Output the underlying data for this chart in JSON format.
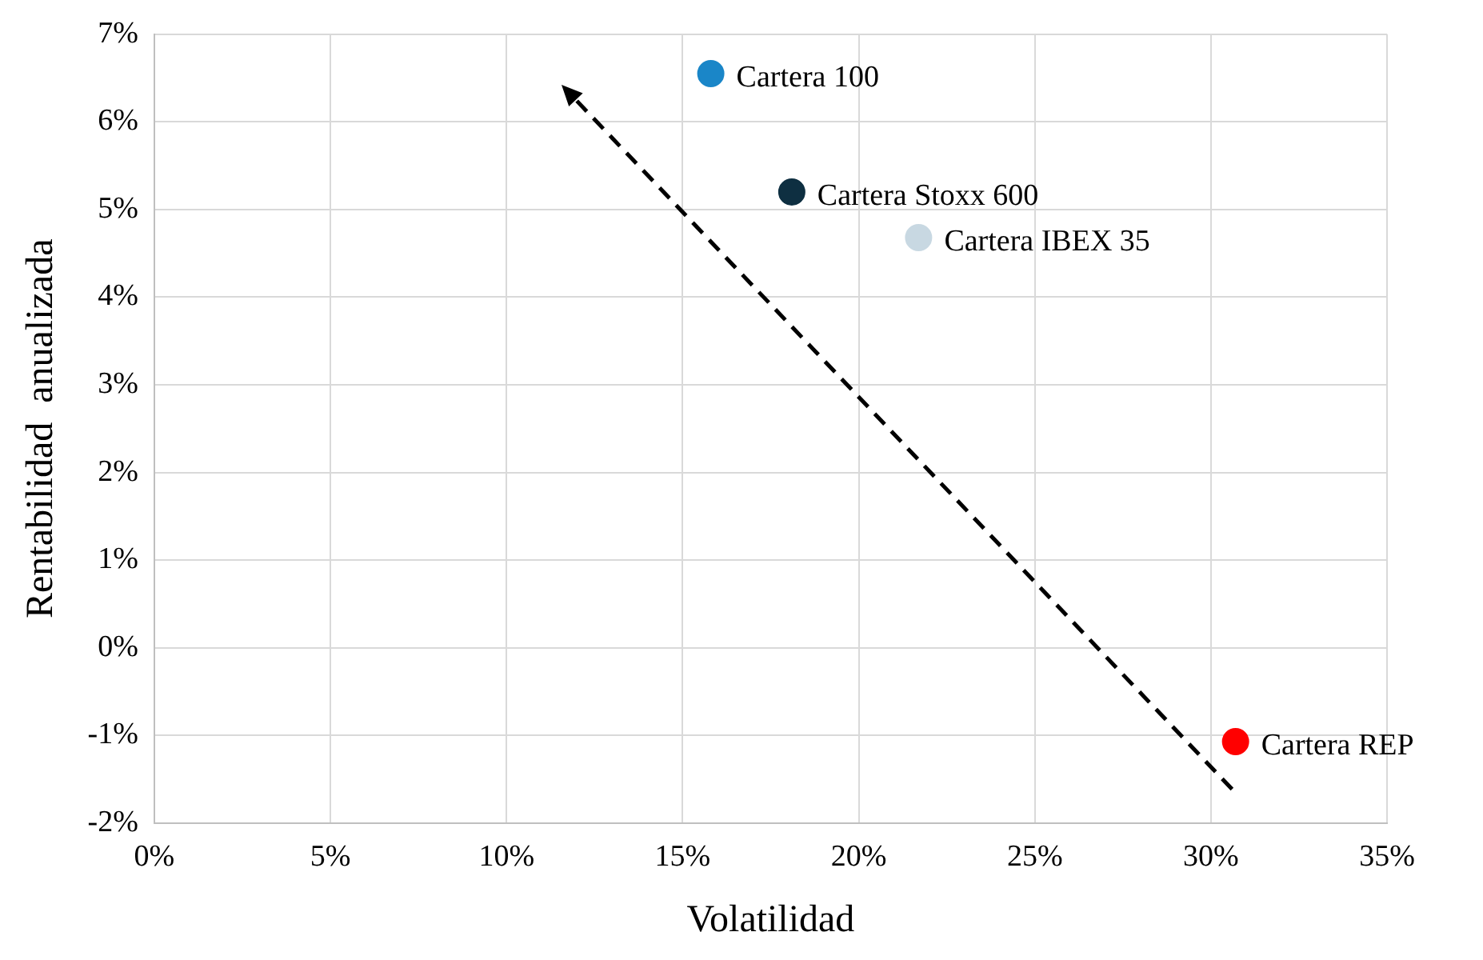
{
  "chart_data": {
    "type": "scatter",
    "xlabel": "Volatilidad",
    "ylabel": "Rentabilidad  anualizada",
    "xlim": [
      0,
      35
    ],
    "xticks": [
      {
        "value": 0,
        "label": "0%"
      },
      {
        "value": 5,
        "label": "5%"
      },
      {
        "value": 10,
        "label": "10%"
      },
      {
        "value": 15,
        "label": "15%"
      },
      {
        "value": 20,
        "label": "20%"
      },
      {
        "value": 25,
        "label": "25%"
      },
      {
        "value": 30,
        "label": "30%"
      },
      {
        "value": 35,
        "label": "35%"
      }
    ],
    "ylim": [
      -2,
      7
    ],
    "yticks": [
      {
        "value": -2,
        "label": "-2%"
      },
      {
        "value": -1,
        "label": "-1%"
      },
      {
        "value": 0,
        "label": "0%"
      },
      {
        "value": 1,
        "label": "1%"
      },
      {
        "value": 2,
        "label": "2%"
      },
      {
        "value": 3,
        "label": "3%"
      },
      {
        "value": 4,
        "label": "4%"
      },
      {
        "value": 5,
        "label": "5%"
      },
      {
        "value": 6,
        "label": "6%"
      },
      {
        "value": 7,
        "label": "7%"
      }
    ],
    "grid": true,
    "legend": false,
    "marker": "circle",
    "series": [
      {
        "name": "Cartera 100",
        "color": "#1a86c8",
        "x": [
          15.8
        ],
        "values": [
          6.55
        ]
      },
      {
        "name": "Cartera Stoxx 600",
        "color": "#0e2f41",
        "x": [
          18.1
        ],
        "values": [
          5.2
        ]
      },
      {
        "name": "Cartera IBEX 35",
        "color": "#c8d8e2",
        "x": [
          21.7
        ],
        "values": [
          4.68
        ]
      },
      {
        "name": "Cartera REP",
        "color": "#ff0000",
        "x": [
          30.7
        ],
        "values": [
          -1.07
        ]
      }
    ]
  }
}
